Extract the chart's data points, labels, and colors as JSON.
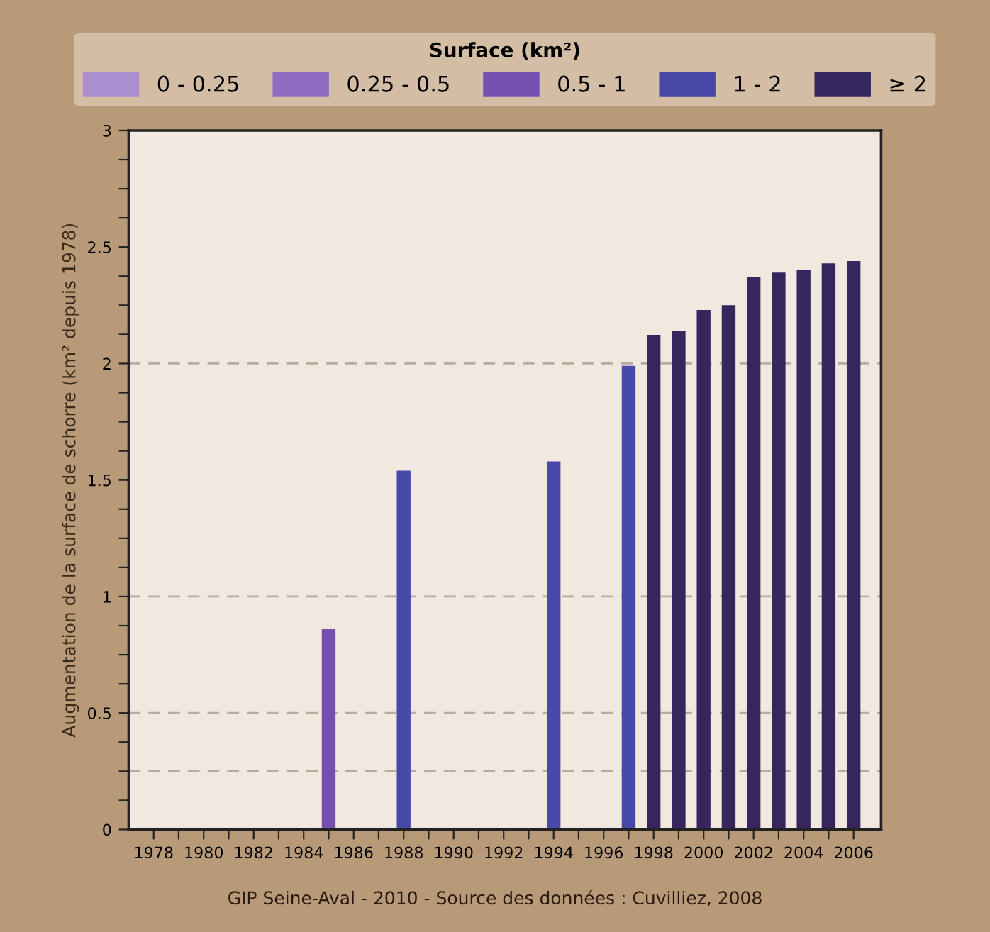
{
  "chart_data": {
    "type": "bar",
    "legend_title": "Surface (km²)",
    "ylabel": "Augmentation de la surface de schorre (km² depuis 1978)",
    "series": [
      {
        "name": "0 - 0.25",
        "color": "#a98fcf"
      },
      {
        "name": "0.25 - 0.5",
        "color": "#8e6cc0"
      },
      {
        "name": "0.5 - 1",
        "color": "#7650b0",
        "x": [
          1985
        ],
        "values": [
          0.86
        ]
      },
      {
        "name": "1 - 2",
        "color": "#4848a8",
        "x": [
          1988,
          1994,
          1997
        ],
        "values": [
          1.54,
          1.58,
          1.99
        ]
      },
      {
        "name": "≥ 2",
        "color": "#35265e",
        "x": [
          1998,
          1999,
          2000,
          2001,
          2002,
          2003,
          2004,
          2005,
          2006
        ],
        "values": [
          2.12,
          2.14,
          2.23,
          2.25,
          2.37,
          2.39,
          2.4,
          2.43,
          2.44
        ]
      }
    ],
    "xlim": [
      1977,
      2007.1
    ],
    "xticks": [
      1978,
      {
        "value": 1979,
        "label": null
      },
      1980,
      {
        "value": 1981,
        "label": null
      },
      1982,
      {
        "value": 1983,
        "label": null
      },
      1984,
      {
        "value": 1985,
        "label": null
      },
      1986,
      {
        "value": 1987,
        "label": null
      },
      1988,
      {
        "value": 1989,
        "label": null
      },
      1990,
      {
        "value": 1991,
        "label": null
      },
      1992,
      {
        "value": 1993,
        "label": null
      },
      1994,
      {
        "value": 1995,
        "label": null
      },
      1996,
      {
        "value": 1997,
        "label": null
      },
      1998,
      {
        "value": 1999,
        "label": null
      },
      2000,
      {
        "value": 2001,
        "label": null
      },
      2002,
      {
        "value": 2003,
        "label": null
      },
      2004,
      {
        "value": 2005,
        "label": null
      },
      2006
    ],
    "ylim": [
      0,
      3
    ],
    "yticks": [
      0,
      {
        "value": 0.125,
        "label": null
      },
      {
        "value": 0.25,
        "label": null
      },
      {
        "value": 0.375,
        "label": null
      },
      0.5,
      {
        "value": 0.625,
        "label": null
      },
      {
        "value": 0.75,
        "label": null
      },
      {
        "value": 0.875,
        "label": null
      },
      1,
      {
        "value": 1.125,
        "label": null
      },
      {
        "value": 1.25,
        "label": null
      },
      {
        "value": 1.375,
        "label": null
      },
      1.5,
      {
        "value": 1.625,
        "label": null
      },
      {
        "value": 1.75,
        "label": null
      },
      {
        "value": 1.875,
        "label": null
      },
      2,
      {
        "value": 2.125,
        "label": null
      },
      {
        "value": 2.25,
        "label": null
      },
      {
        "value": 2.375,
        "label": null
      },
      2.5,
      {
        "value": 2.625,
        "label": null
      },
      {
        "value": 2.75,
        "label": null
      },
      {
        "value": 2.875,
        "label": null
      },
      3
    ],
    "ref_lines": [
      {
        "axis": "y",
        "value": 0.25,
        "color": "#b5aca2",
        "line_style": "dashed"
      },
      {
        "axis": "y",
        "value": 0.5,
        "color": "#b5aca2",
        "line_style": "dashed"
      },
      {
        "axis": "y",
        "value": 1,
        "color": "#b5aca2",
        "line_style": "dashed"
      },
      {
        "axis": "y",
        "value": 2,
        "color": "#b5aca2",
        "line_style": "dashed"
      }
    ],
    "legend": "top",
    "annotations": [
      "GIP Seine-Aval - 2010 - Source des données : Cuvilliez, 2008"
    ]
  }
}
